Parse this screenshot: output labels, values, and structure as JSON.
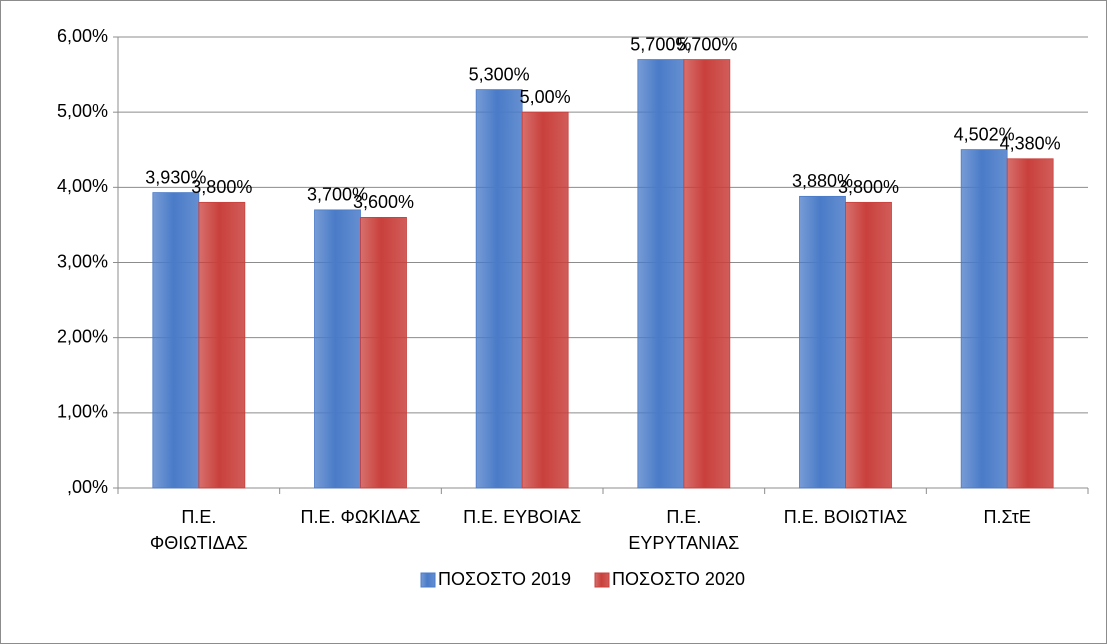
{
  "chart_data": {
    "type": "bar",
    "categories": [
      "Π.Ε. ΦΘΙΩΤΙΔΑΣ",
      "Π.Ε. ΦΩΚΙΔΑΣ",
      "Π.Ε. ΕΥΒΟΙΑΣ",
      "Π.Ε. ΕΥΡΥΤΑΝΙΑΣ",
      "Π.Ε. ΒΟΙΩΤΙΑΣ",
      "Π.ΣτΕ"
    ],
    "series": [
      {
        "name": "ΠΟΣΟΣΤΟ 2019",
        "color": "#4a7bc8",
        "values": [
          3.93,
          3.7,
          5.3,
          5.7,
          3.88,
          4.502
        ],
        "value_labels": [
          "3,930%",
          "3,700%",
          "5,300%",
          "5,700%",
          "3,880%",
          "4,502%"
        ]
      },
      {
        "name": "ΠΟΣΟΣΤΟ 2020",
        "color": "#c9403c",
        "values": [
          3.8,
          3.6,
          5.0,
          5.7,
          3.8,
          4.38
        ],
        "value_labels": [
          "3,800%",
          "3,600%",
          "5,00%",
          "5,700%",
          "3,800%",
          "4,380%"
        ]
      }
    ],
    "ylim": [
      0,
      6
    ],
    "yticks": [
      {
        "value": 0,
        "label": ",00%"
      },
      {
        "value": 1,
        "label": "1,00%"
      },
      {
        "value": 2,
        "label": "2,00%"
      },
      {
        "value": 3,
        "label": "3,00%"
      },
      {
        "value": 4,
        "label": "4,00%"
      },
      {
        "value": 5,
        "label": "5,00%"
      },
      {
        "value": 6,
        "label": "6,00%"
      }
    ],
    "grid": true,
    "legend": "bottom"
  }
}
